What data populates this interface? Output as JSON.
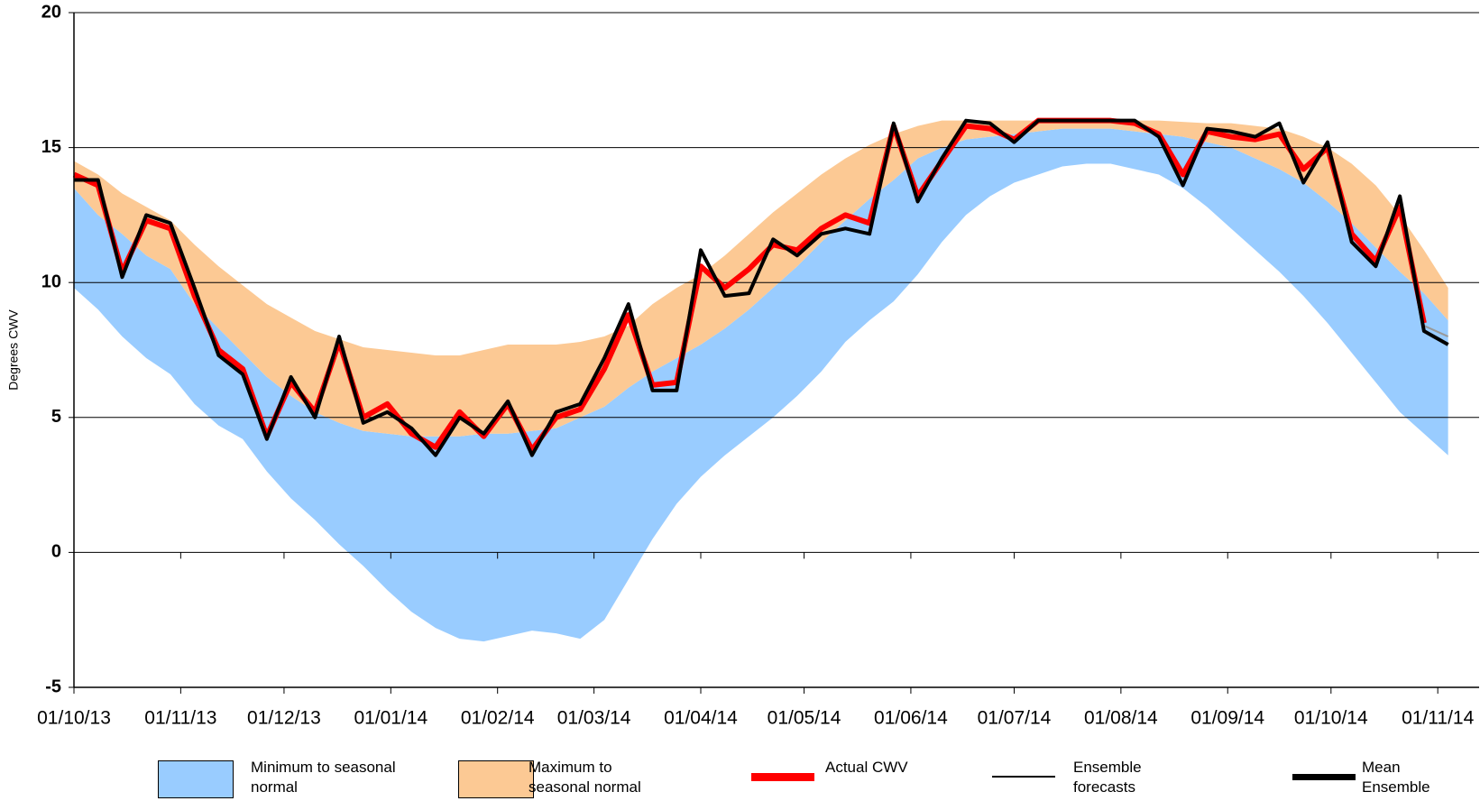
{
  "chart_data": {
    "type": "line",
    "y_label": "Degrees CWV",
    "x": [
      "01/10/13",
      "08/10/13",
      "15/10/13",
      "22/10/13",
      "29/10/13",
      "05/11/13",
      "12/11/13",
      "19/11/13",
      "26/11/13",
      "03/12/13",
      "10/12/13",
      "17/12/13",
      "24/12/13",
      "31/12/13",
      "07/01/14",
      "14/01/14",
      "21/01/14",
      "28/01/14",
      "04/02/14",
      "11/02/14",
      "18/02/14",
      "25/02/14",
      "04/03/14",
      "11/03/14",
      "18/03/14",
      "25/03/14",
      "01/04/14",
      "08/04/14",
      "15/04/14",
      "22/04/14",
      "29/04/14",
      "06/05/14",
      "13/05/14",
      "20/05/14",
      "27/05/14",
      "03/06/14",
      "10/06/14",
      "17/06/14",
      "24/06/14",
      "01/07/14",
      "08/07/14",
      "15/07/14",
      "22/07/14",
      "29/07/14",
      "05/08/14",
      "12/08/14",
      "19/08/14",
      "26/08/14",
      "02/09/14",
      "09/09/14",
      "16/09/14",
      "23/09/14",
      "30/09/14",
      "07/10/14",
      "14/10/14",
      "21/10/14",
      "28/10/14",
      "04/11/14"
    ],
    "xlim": [
      "01/10/13",
      "13/11/14"
    ],
    "xticks": [
      "01/10/13",
      "01/11/13",
      "01/12/13",
      "01/01/14",
      "01/02/14",
      "01/03/14",
      "01/04/14",
      "01/05/14",
      "01/06/14",
      "01/07/14",
      "01/08/14",
      "01/09/14",
      "01/10/14",
      "01/11/14"
    ],
    "ylim": [
      -5,
      20
    ],
    "yticks": [
      -5,
      0,
      5,
      10,
      15,
      20
    ],
    "grid": true,
    "legend": "bottom",
    "bands": [
      {
        "name": "Minimum to seasonal normal",
        "color": "#99ccff",
        "lower": [
          9.8,
          9,
          8,
          7.2,
          6.6,
          5.5,
          4.7,
          4.2,
          3,
          2,
          1.2,
          0.3,
          -0.5,
          -1.4,
          -2.2,
          -2.8,
          -3.2,
          -3.3,
          -3.1,
          -2.9,
          -3,
          -3.2,
          -2.5,
          -1,
          0.5,
          1.8,
          2.8,
          3.6,
          4.3,
          5,
          5.8,
          6.7,
          7.8,
          8.6,
          9.3,
          10.3,
          11.5,
          12.5,
          13.2,
          13.7,
          14,
          14.3,
          14.4,
          14.4,
          14.2,
          14,
          13.5,
          12.8,
          12,
          11.2,
          10.4,
          9.5,
          8.5,
          7.4,
          6.3,
          5.2,
          4.4,
          3.6
        ],
        "upper": [
          13.5,
          12.5,
          11.8,
          11,
          10.5,
          9.2,
          8.3,
          7.4,
          6.5,
          5.8,
          5.2,
          4.8,
          4.5,
          4.4,
          4.3,
          4.3,
          4.3,
          4.4,
          4.4,
          4.5,
          4.6,
          5,
          5.4,
          6.1,
          6.7,
          7.2,
          7.7,
          8.3,
          9,
          9.8,
          10.6,
          11.5,
          12.3,
          13.1,
          13.8,
          14.6,
          15,
          15.3,
          15.4,
          15.5,
          15.6,
          15.7,
          15.7,
          15.7,
          15.6,
          15.5,
          15.4,
          15.2,
          15,
          14.6,
          14.2,
          13.7,
          13,
          12.2,
          11.3,
          10.4,
          9.6,
          8.6
        ]
      },
      {
        "name": "Maximum to seasonal normal",
        "color": "#fcc994",
        "lower": [
          13.5,
          12.5,
          11.8,
          11,
          10.5,
          9.2,
          8.3,
          7.4,
          6.5,
          5.8,
          5.2,
          4.8,
          4.5,
          4.4,
          4.3,
          4.3,
          4.3,
          4.4,
          4.4,
          4.5,
          4.6,
          5,
          5.4,
          6.1,
          6.7,
          7.2,
          7.7,
          8.3,
          9,
          9.8,
          10.6,
          11.5,
          12.3,
          13.1,
          13.8,
          14.6,
          15,
          15.3,
          15.4,
          15.5,
          15.6,
          15.7,
          15.7,
          15.7,
          15.6,
          15.5,
          15.4,
          15.2,
          15,
          14.6,
          14.2,
          13.7,
          13,
          12.2,
          11.3,
          10.4,
          9.6,
          8.6
        ],
        "upper": [
          14.5,
          14,
          13.3,
          12.8,
          12.3,
          11.4,
          10.6,
          9.9,
          9.2,
          8.7,
          8.2,
          7.9,
          7.6,
          7.5,
          7.4,
          7.3,
          7.3,
          7.5,
          7.7,
          7.7,
          7.7,
          7.8,
          8,
          8.4,
          9.2,
          9.8,
          10.3,
          11,
          11.8,
          12.6,
          13.3,
          14,
          14.6,
          15.1,
          15.5,
          15.8,
          16,
          16,
          16,
          16,
          16,
          16,
          16,
          16,
          16,
          16,
          15.95,
          15.9,
          15.9,
          15.8,
          15.7,
          15.4,
          15,
          14.4,
          13.6,
          12.5,
          11.2,
          9.8
        ]
      }
    ],
    "series": [
      {
        "name": "Actual CWV",
        "color": "#ff0000",
        "width": 6,
        "values": [
          14,
          13.6,
          10.4,
          12.3,
          12,
          9.5,
          7.5,
          6.8,
          4.3,
          6.3,
          5.2,
          7.8,
          5,
          5.5,
          4.4,
          3.9,
          5.2,
          4.3,
          5.5,
          3.8,
          5,
          5.3,
          6.8,
          8.8,
          6.2,
          6.3,
          10.6,
          9.8,
          10.5,
          11.4,
          11.2,
          12,
          12.5,
          12.2,
          15.8,
          13.2,
          14.5,
          15.8,
          15.7,
          15.3,
          16,
          16,
          16,
          16,
          15.9,
          15.5,
          14,
          15.6,
          15.4,
          15.3,
          15.5,
          14.2,
          15,
          11.8,
          10.8,
          12.8,
          8.5,
          null
        ]
      },
      {
        "name": "Ensemble forecasts",
        "color": "#999999",
        "width": 2,
        "values": [
          null,
          null,
          null,
          null,
          null,
          null,
          null,
          null,
          null,
          null,
          null,
          null,
          null,
          null,
          null,
          null,
          null,
          null,
          null,
          null,
          null,
          null,
          null,
          null,
          null,
          null,
          null,
          null,
          null,
          null,
          null,
          null,
          null,
          null,
          null,
          null,
          null,
          null,
          null,
          null,
          null,
          null,
          null,
          null,
          null,
          null,
          null,
          null,
          null,
          null,
          null,
          null,
          null,
          null,
          null,
          null,
          8.4,
          8
        ]
      },
      {
        "name": "Mean Ensemble",
        "color": "#000000",
        "width": 4,
        "values": [
          13.8,
          13.8,
          10.2,
          12.5,
          12.2,
          9.8,
          7.3,
          6.6,
          4.2,
          6.5,
          5,
          8,
          4.8,
          5.2,
          4.6,
          3.6,
          5,
          4.4,
          5.6,
          3.6,
          5.2,
          5.5,
          7.2,
          9.2,
          6,
          6,
          11.2,
          9.5,
          9.6,
          11.6,
          11,
          11.8,
          12,
          11.8,
          15.9,
          13,
          14.6,
          16,
          15.9,
          15.2,
          16,
          16,
          16,
          16,
          16,
          15.4,
          13.6,
          15.7,
          15.6,
          15.4,
          15.9,
          13.7,
          15.2,
          11.5,
          10.6,
          13.2,
          8.2,
          7.7
        ]
      }
    ]
  }
}
